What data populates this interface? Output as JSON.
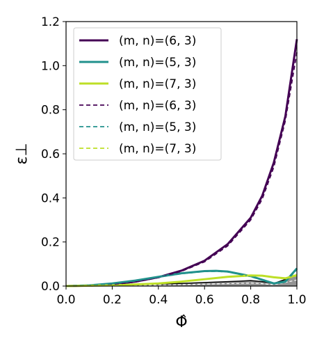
{
  "chart_data": {
    "type": "line",
    "xlabel": "Φ̂",
    "ylabel": "ε⊥",
    "xlim": [
      0.0,
      1.0
    ],
    "ylim": [
      0.0,
      1.2
    ],
    "xticks": [
      "0.0",
      "0.2",
      "0.4",
      "0.6",
      "0.8",
      "1.0"
    ],
    "yticks": [
      "0.0",
      "0.2",
      "0.4",
      "0.6",
      "0.8",
      "1.0",
      "1.2"
    ],
    "legend_position": "top-left",
    "series": [
      {
        "name": "(m, n)=(6, 3)",
        "style": "solid",
        "color": "#440154",
        "x": [
          0.0,
          0.1,
          0.2,
          0.3,
          0.4,
          0.5,
          0.6,
          0.7,
          0.8,
          0.85,
          0.9,
          0.95,
          1.0
        ],
        "y": [
          0.0,
          0.002,
          0.008,
          0.02,
          0.04,
          0.07,
          0.115,
          0.19,
          0.31,
          0.41,
          0.56,
          0.77,
          1.12
        ]
      },
      {
        "name": "(m, n)=(5, 3)",
        "style": "solid",
        "color": "#21918c",
        "x": [
          0.0,
          0.1,
          0.2,
          0.3,
          0.4,
          0.5,
          0.6,
          0.65,
          0.7,
          0.8,
          0.9,
          0.95,
          1.0
        ],
        "y": [
          0.0,
          0.003,
          0.012,
          0.025,
          0.042,
          0.058,
          0.068,
          0.069,
          0.066,
          0.045,
          0.012,
          0.02,
          0.08
        ]
      },
      {
        "name": "(m, n)=(7, 3)",
        "style": "solid",
        "color": "#bddf26",
        "x": [
          0.0,
          0.2,
          0.4,
          0.5,
          0.6,
          0.7,
          0.8,
          0.85,
          0.9,
          0.95,
          1.0
        ],
        "y": [
          0.0,
          0.003,
          0.012,
          0.02,
          0.031,
          0.042,
          0.048,
          0.047,
          0.04,
          0.035,
          0.05
        ]
      },
      {
        "name": "(m, n)=(6, 3)",
        "style": "dashed",
        "color": "#440154",
        "x": [
          0.0,
          0.1,
          0.2,
          0.3,
          0.4,
          0.5,
          0.6,
          0.7,
          0.8,
          0.85,
          0.9,
          0.95,
          1.0
        ],
        "y": [
          0.0,
          0.002,
          0.007,
          0.018,
          0.038,
          0.067,
          0.11,
          0.182,
          0.3,
          0.395,
          0.54,
          0.75,
          1.06
        ]
      },
      {
        "name": "(m, n)=(5, 3)",
        "style": "dashed",
        "color": "#21918c",
        "x": [
          0.0,
          0.1,
          0.2,
          0.3,
          0.4,
          0.5,
          0.6,
          0.65,
          0.7,
          0.8,
          0.9,
          0.95,
          1.0
        ],
        "y": [
          0.0,
          0.003,
          0.011,
          0.024,
          0.04,
          0.056,
          0.066,
          0.067,
          0.064,
          0.043,
          0.01,
          0.018,
          0.075
        ]
      },
      {
        "name": "(m, n)=(7, 3)",
        "style": "dashed",
        "color": "#bddf26",
        "x": [
          0.0,
          0.2,
          0.4,
          0.5,
          0.6,
          0.7,
          0.8,
          0.85,
          0.9,
          0.95,
          1.0
        ],
        "y": [
          0.0,
          0.003,
          0.011,
          0.019,
          0.03,
          0.041,
          0.047,
          0.046,
          0.039,
          0.033,
          0.047
        ]
      }
    ],
    "background_curves": {
      "color": "#000000",
      "fill_color": "#808080",
      "x": [
        0.0,
        0.1,
        0.2,
        0.3,
        0.4,
        0.5,
        0.6,
        0.7,
        0.75,
        0.8,
        0.85,
        0.9,
        0.95,
        1.0
      ],
      "y": [
        0.0,
        0.001,
        0.003,
        0.006,
        0.009,
        0.012,
        0.016,
        0.02,
        0.022,
        0.025,
        0.02,
        0.012,
        0.03,
        0.05
      ]
    }
  }
}
